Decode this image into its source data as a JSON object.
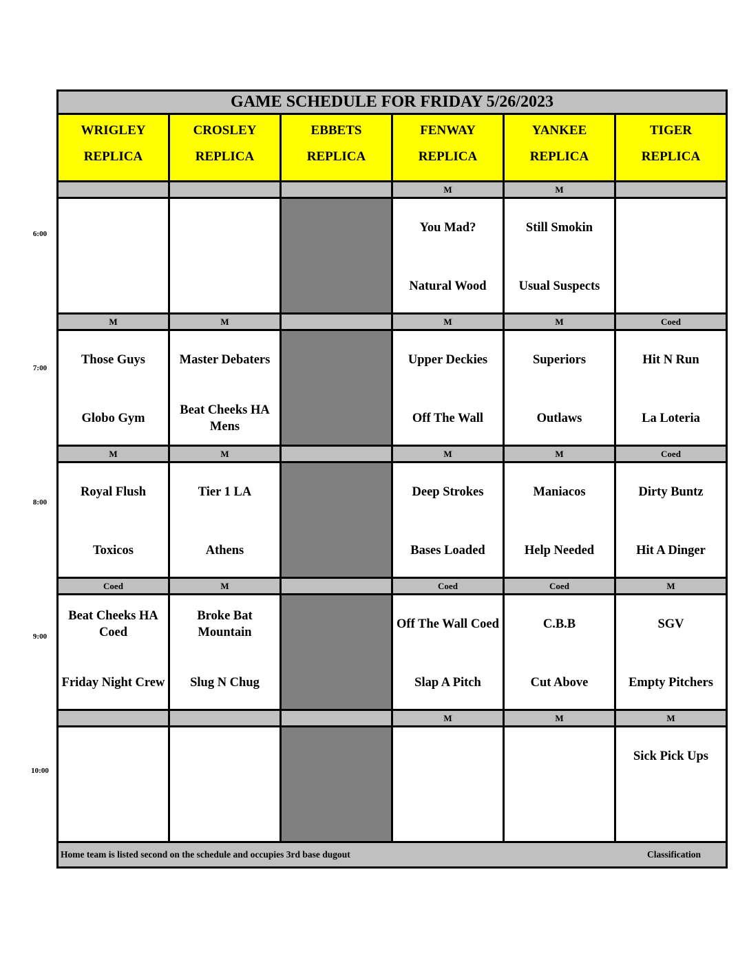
{
  "title": "GAME SCHEDULE FOR FRIDAY 5/26/2023",
  "fields": [
    {
      "name": "WRIGLEY",
      "sub": "REPLICA",
      "closed": false
    },
    {
      "name": "CROSLEY",
      "sub": "REPLICA",
      "closed": false
    },
    {
      "name": "EBBETS",
      "sub": "REPLICA",
      "closed": true
    },
    {
      "name": "FENWAY",
      "sub": "REPLICA",
      "closed": false
    },
    {
      "name": "YANKEE",
      "sub": "REPLICA",
      "closed": false
    },
    {
      "name": "TIGER",
      "sub": "REPLICA",
      "closed": false
    }
  ],
  "slots": [
    {
      "time": "6:00",
      "classes": [
        "",
        "",
        "",
        "M",
        "M",
        ""
      ],
      "games": [
        {
          "away": "",
          "home": ""
        },
        {
          "away": "",
          "home": ""
        },
        {
          "away": "",
          "home": ""
        },
        {
          "away": "You Mad?",
          "home": "Natural Wood"
        },
        {
          "away": "Still Smokin",
          "home": "Usual Suspects"
        },
        {
          "away": "",
          "home": ""
        }
      ]
    },
    {
      "time": "7:00",
      "classes": [
        "M",
        "M",
        "",
        "M",
        "M",
        "Coed"
      ],
      "games": [
        {
          "away": "Those Guys",
          "home": "Globo Gym"
        },
        {
          "away": "Master Debaters",
          "home": "Beat Cheeks HA Mens"
        },
        {
          "away": "",
          "home": ""
        },
        {
          "away": "Upper Deckies",
          "home": "Off The Wall"
        },
        {
          "away": "Superiors",
          "home": "Outlaws"
        },
        {
          "away": "Hit N Run",
          "home": "La Loteria"
        }
      ]
    },
    {
      "time": "8:00",
      "classes": [
        "M",
        "M",
        "",
        "M",
        "M",
        "Coed"
      ],
      "games": [
        {
          "away": "Royal Flush",
          "home": "Toxicos"
        },
        {
          "away": "Tier 1 LA",
          "home": "Athens"
        },
        {
          "away": "",
          "home": ""
        },
        {
          "away": "Deep Strokes",
          "home": "Bases Loaded"
        },
        {
          "away": "Maniacos",
          "home": "Help Needed"
        },
        {
          "away": "Dirty Buntz",
          "home": "Hit A Dinger"
        }
      ]
    },
    {
      "time": "9:00",
      "classes": [
        "Coed",
        "M",
        "",
        "Coed",
        "Coed",
        "M"
      ],
      "games": [
        {
          "away": "Beat Cheeks HA Coed",
          "home": "Friday Night Crew"
        },
        {
          "away": "Broke Bat Mountain",
          "home": "Slug N Chug"
        },
        {
          "away": "",
          "home": ""
        },
        {
          "away": "Off The Wall Coed",
          "home": "Slap A Pitch"
        },
        {
          "away": "C.B.B",
          "home": "Cut Above"
        },
        {
          "away": "SGV",
          "home": "Empty Pitchers"
        }
      ]
    },
    {
      "time": "10:00",
      "classes": [
        "",
        "",
        "",
        "M",
        "M",
        "M"
      ],
      "games": [
        {
          "away": "",
          "home": ""
        },
        {
          "away": "",
          "home": ""
        },
        {
          "away": "",
          "home": ""
        },
        {
          "away": "",
          "home": ""
        },
        {
          "away": "",
          "home": ""
        },
        {
          "away": "Sick Pick Ups",
          "home": ""
        }
      ]
    }
  ],
  "footer": {
    "note": "Home team is listed second on the schedule and occupies 3rd base dugout",
    "legend": "Classification"
  },
  "colors": {
    "header": "#ffff00",
    "band": "#c0c0c0",
    "closed_field": "#808080"
  }
}
